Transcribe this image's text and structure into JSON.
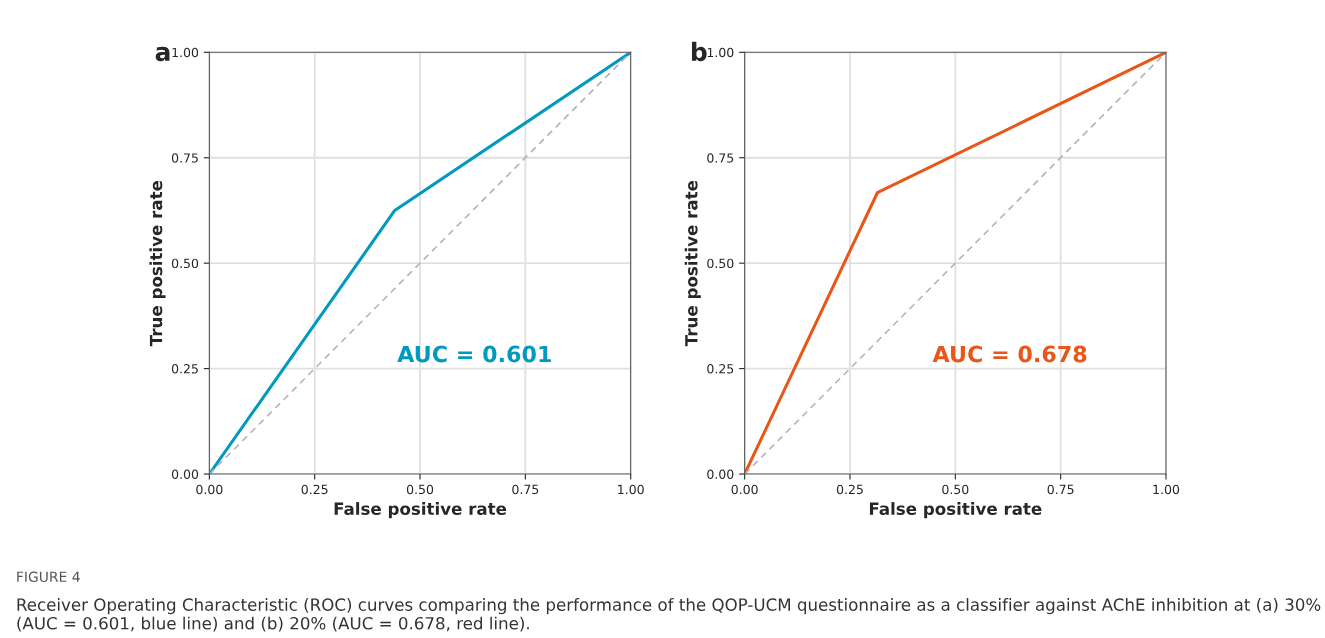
{
  "chart_data": [
    {
      "type": "line",
      "title": "a",
      "xlabel": "False positive rate",
      "ylabel": "True positive rate",
      "xlim": [
        0,
        1
      ],
      "ylim": [
        0,
        1
      ],
      "xticks": [
        {
          "value": 0,
          "label": "0.00"
        },
        {
          "value": 0.25,
          "label": "0.25"
        },
        {
          "value": 0.5,
          "label": "0.50"
        },
        {
          "value": 0.75,
          "label": "0.75"
        },
        {
          "value": 1,
          "label": "1.00"
        }
      ],
      "yticks": [
        {
          "value": 0,
          "label": "0.00"
        },
        {
          "value": 0.25,
          "label": "0.25"
        },
        {
          "value": 0.5,
          "label": "0.50"
        },
        {
          "value": 0.75,
          "label": "0.75"
        },
        {
          "value": 1,
          "label": "1.00"
        }
      ],
      "grid": true,
      "legend": false,
      "series": [
        {
          "x": [
            0,
            0.44,
            1
          ],
          "values": [
            0,
            0.625,
            1
          ],
          "color": "#0099c0",
          "line_style": "solid"
        },
        {
          "x": [
            0,
            1
          ],
          "values": [
            0,
            1
          ],
          "color": "#b4b4b4",
          "line_style": "dashed"
        }
      ],
      "annotations": [
        "AUC = 0.601",
        "FIGURE 4",
        "Receiver Operating Characteristic (ROC) curves comparing the performance of the QOP-UCM questionnaire as a classifier against AChE inhibition at (a) 30% (AUC = 0.601, blue line) and (b) 20% (AUC = 0.678, red line)."
      ]
    },
    {
      "type": "line",
      "title": "b",
      "xlabel": "False positive rate",
      "ylabel": "True positive rate",
      "xlim": [
        0,
        1
      ],
      "ylim": [
        0,
        1
      ],
      "xticks": [
        {
          "value": 0,
          "label": "0.00"
        },
        {
          "value": 0.25,
          "label": "0.25"
        },
        {
          "value": 0.5,
          "label": "0.50"
        },
        {
          "value": 0.75,
          "label": "0.75"
        },
        {
          "value": 1,
          "label": "1.00"
        }
      ],
      "yticks": [
        {
          "value": 0,
          "label": "0.00"
        },
        {
          "value": 0.25,
          "label": "0.25"
        },
        {
          "value": 0.5,
          "label": "0.50"
        },
        {
          "value": 0.75,
          "label": "0.75"
        },
        {
          "value": 1,
          "label": "1.00"
        }
      ],
      "grid": true,
      "legend": false,
      "series": [
        {
          "x": [
            0,
            0.315,
            1
          ],
          "values": [
            0,
            0.667,
            1
          ],
          "color": "#e8561a",
          "line_style": "solid"
        },
        {
          "x": [
            0,
            1
          ],
          "values": [
            0,
            1
          ],
          "color": "#b4b4b4",
          "line_style": "dashed"
        }
      ],
      "annotations": [
        "AUC = 0.678"
      ]
    }
  ]
}
